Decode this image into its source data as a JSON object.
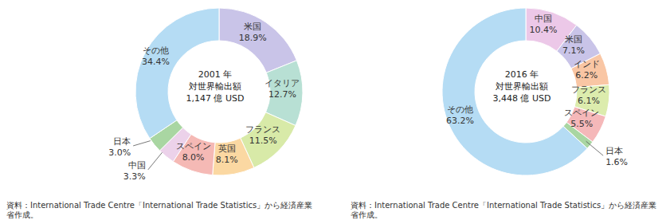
{
  "chart_data": [
    {
      "type": "pie",
      "title": "2001 年",
      "subtitle": [
        "対世界輸出額",
        "1,147 億 USD"
      ],
      "categories": [
        "米国",
        "イタリア",
        "フランス",
        "英国",
        "スペイン",
        "中国",
        "日本",
        "その他"
      ],
      "values": [
        18.9,
        12.7,
        11.5,
        8.1,
        8.0,
        3.3,
        3.0,
        34.4
      ],
      "value_labels": [
        "18.9%",
        "12.7%",
        "11.5%",
        "8.1%",
        "8.0%",
        "3.3%",
        "3.0%",
        "34.4%"
      ],
      "colors": [
        "#c9c4e8",
        "#b8e0d4",
        "#d8eaa8",
        "#fbd8a2",
        "#f5b9b5",
        "#ecd2ea",
        "#a9d6a2",
        "#b5dcf4"
      ],
      "data_labels": true,
      "source": "資料：International Trade Centre「International Trade Statistics」から経済産業省作成。"
    },
    {
      "type": "pie",
      "title": "2016 年",
      "subtitle": [
        "対世界輸出額",
        "3,448 億 USD"
      ],
      "categories": [
        "中国",
        "米国",
        "インド",
        "フランス",
        "スペイン",
        "日本",
        "その他"
      ],
      "values": [
        10.4,
        7.1,
        6.2,
        6.1,
        5.5,
        1.6,
        63.2
      ],
      "value_labels": [
        "10.4%",
        "7.1%",
        "6.2%",
        "6.1%",
        "5.5%",
        "1.6%",
        "63.2%"
      ],
      "colors": [
        "#ecc8e8",
        "#c9c4e8",
        "#f9c6a4",
        "#dcecad",
        "#f5b8b9",
        "#a9d6a2",
        "#b5dcf4"
      ],
      "data_labels": true,
      "source": "資料：International Trade Centre「International Trade Statistics」から経済産業省作成。"
    }
  ]
}
